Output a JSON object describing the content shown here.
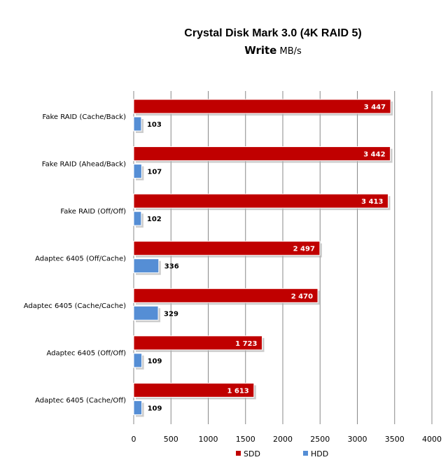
{
  "chart_data": {
    "type": "bar",
    "orientation": "horizontal",
    "title": "Crystal Disk Mark 3.0 (4K RAID 5)",
    "subtitle_bold": "Write",
    "subtitle_unit": "MB/s",
    "categories": [
      "Fake RAID (Cache/Back)",
      "Fake RAID (Ahead/Back)",
      "Fake RAID (Off/Off)",
      "Adaptec 6405 (Off/Cache)",
      "Adaptec 6405 (Cache/Cache)",
      "Adaptec 6405 (Off/Off)",
      "Adaptec 6405 (Cache/Off)"
    ],
    "series": [
      {
        "name": "SDD",
        "color": "#c00000",
        "values": [
          3447,
          3442,
          3413,
          2497,
          2470,
          1723,
          1613
        ],
        "labels": [
          "3 447",
          "3 442",
          "3 413",
          "2 497",
          "2 470",
          "1 723",
          "1 613"
        ]
      },
      {
        "name": "HDD",
        "color": "#558ed5",
        "values": [
          103,
          107,
          102,
          336,
          329,
          109,
          109
        ],
        "labels": [
          "103",
          "107",
          "102",
          "336",
          "329",
          "109",
          "109"
        ]
      }
    ],
    "xlim": [
      0,
      4000
    ],
    "xticks": [
      "0",
      "500",
      "1000",
      "1500",
      "2000",
      "2500",
      "3000",
      "3500",
      "4000"
    ],
    "grid": true,
    "legend": "bottom"
  }
}
